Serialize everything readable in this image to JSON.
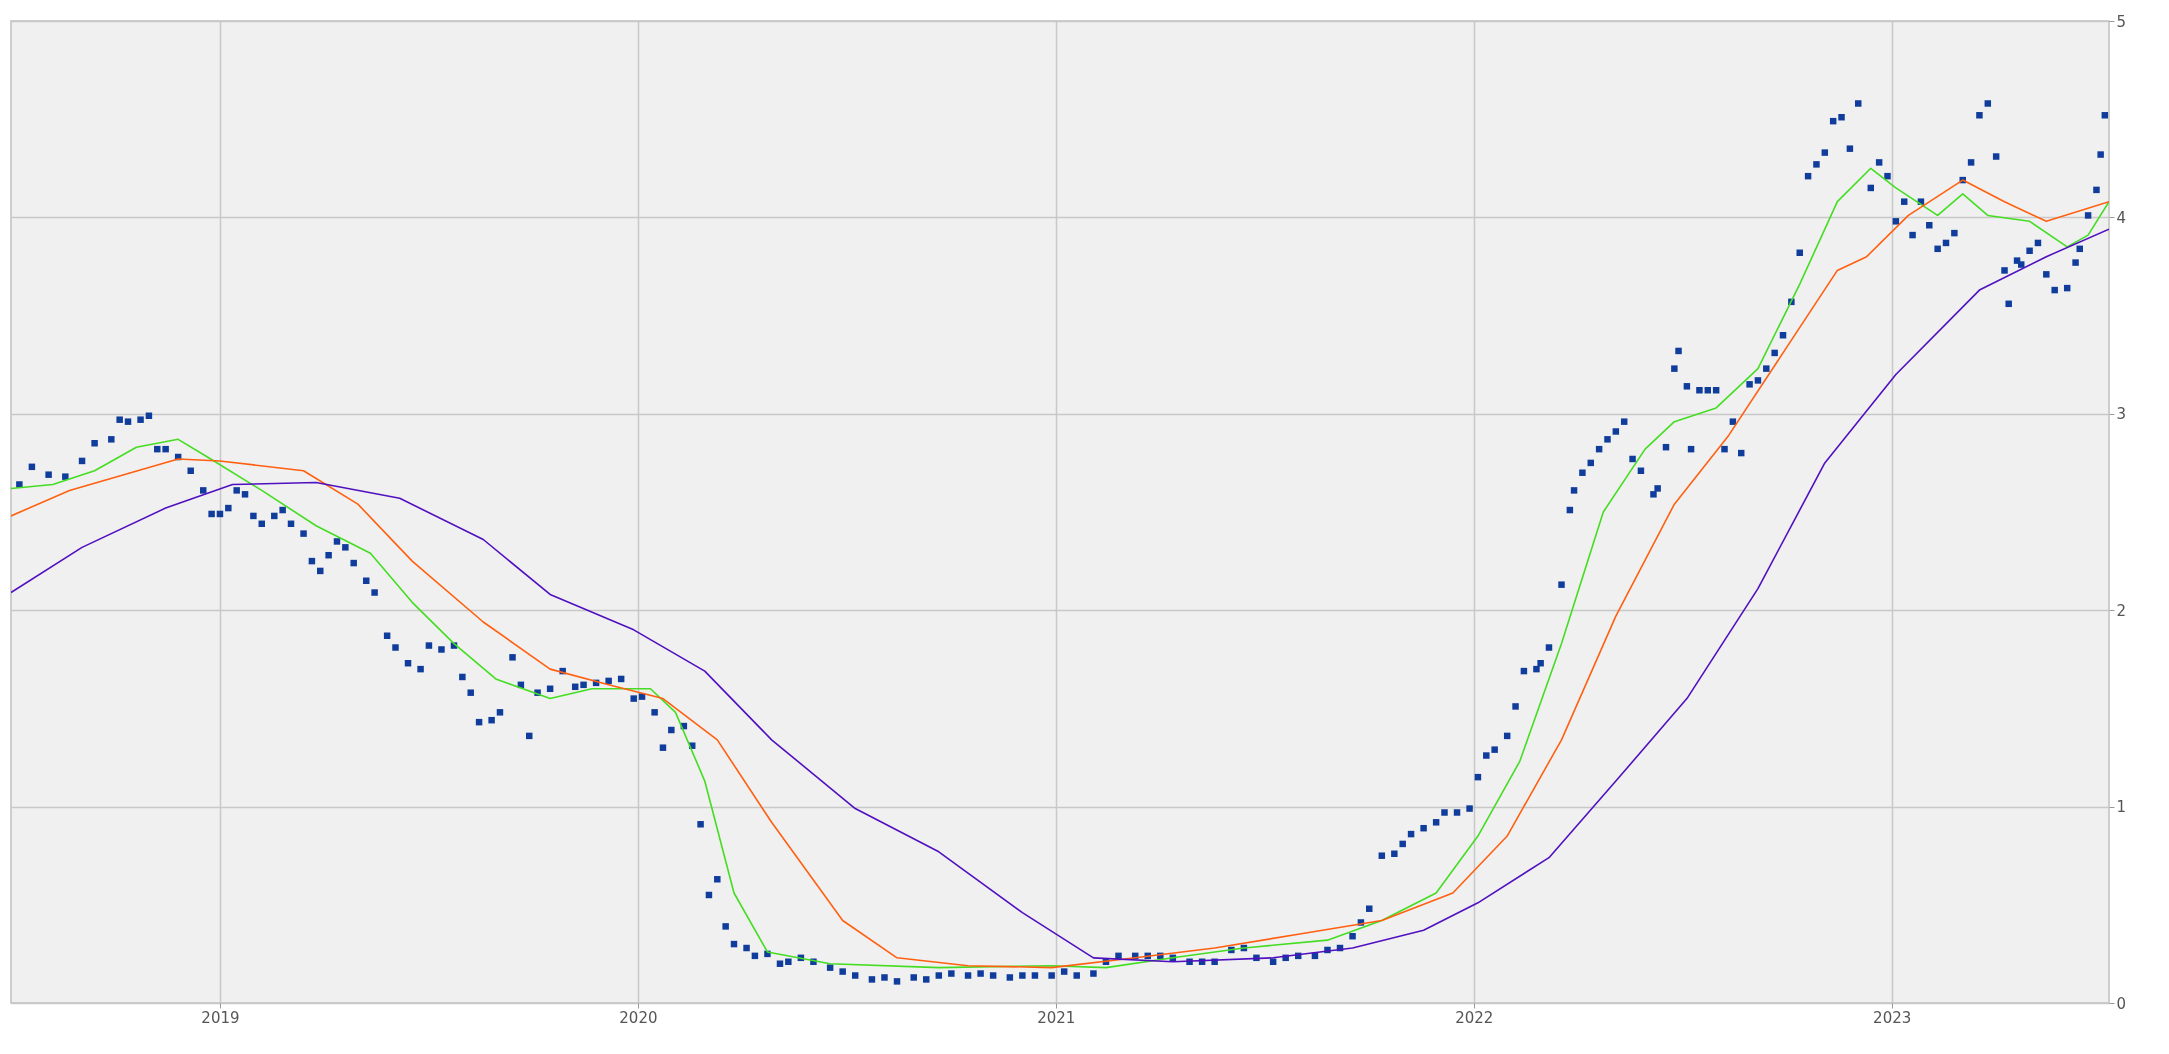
{
  "chart_data": {
    "type": "scatter",
    "xlim": [
      2018.5,
      2023.52
    ],
    "xticks": [
      2019,
      2020,
      2021,
      2022,
      2023
    ],
    "ylim": [
      0,
      5
    ],
    "yticks": [
      0,
      1,
      2,
      3,
      4,
      5
    ],
    "grid": true,
    "series": [
      {
        "type": "scatter",
        "marker": "square",
        "color": "#103c9c",
        "x": [
          2018.52,
          2018.55,
          2018.59,
          2018.63,
          2018.67,
          2018.7,
          2018.74,
          2018.76,
          2018.78,
          2018.81,
          2018.83,
          2018.85,
          2018.87,
          2018.9,
          2018.93,
          2018.96,
          2018.98,
          2019.0,
          2019.02,
          2019.04,
          2019.06,
          2019.08,
          2019.1,
          2019.13,
          2019.15,
          2019.17,
          2019.2,
          2019.22,
          2019.24,
          2019.26,
          2019.28,
          2019.3,
          2019.32,
          2019.35,
          2019.37,
          2019.4,
          2019.42,
          2019.45,
          2019.48,
          2019.5,
          2019.53,
          2019.56,
          2019.58,
          2019.6,
          2019.62,
          2019.65,
          2019.67,
          2019.7,
          2019.72,
          2019.74,
          2019.76,
          2019.79,
          2019.82,
          2019.85,
          2019.87,
          2019.9,
          2019.93,
          2019.96,
          2019.99,
          2020.01,
          2020.04,
          2020.06,
          2020.08,
          2020.11,
          2020.13,
          2020.15,
          2020.17,
          2020.19,
          2020.21,
          2020.23,
          2020.26,
          2020.28,
          2020.31,
          2020.34,
          2020.36,
          2020.39,
          2020.42,
          2020.46,
          2020.49,
          2020.52,
          2020.56,
          2020.59,
          2020.62,
          2020.66,
          2020.69,
          2020.72,
          2020.75,
          2020.79,
          2020.82,
          2020.85,
          2020.89,
          2020.92,
          2020.95,
          2020.99,
          2021.02,
          2021.05,
          2021.09,
          2021.12,
          2021.15,
          2021.19,
          2021.22,
          2021.25,
          2021.28,
          2021.32,
          2021.35,
          2021.38,
          2021.42,
          2021.45,
          2021.48,
          2021.52,
          2021.55,
          2021.58,
          2021.62,
          2021.65,
          2021.68,
          2021.71,
          2021.73,
          2021.75,
          2021.78,
          2021.81,
          2021.83,
          2021.85,
          2021.88,
          2021.91,
          2021.93,
          2021.96,
          2021.99,
          2022.01,
          2022.03,
          2022.05,
          2022.08,
          2022.1,
          2022.12,
          2022.15,
          2022.16,
          2022.18,
          2022.21,
          2022.23,
          2022.24,
          2022.26,
          2022.28,
          2022.3,
          2022.32,
          2022.34,
          2022.36,
          2022.38,
          2022.4,
          2022.43,
          2022.44,
          2022.46,
          2022.48,
          2022.49,
          2022.51,
          2022.52,
          2022.54,
          2022.56,
          2022.58,
          2022.6,
          2022.62,
          2022.64,
          2022.66,
          2022.68,
          2022.7,
          2022.72,
          2022.74,
          2022.76,
          2022.78,
          2022.8,
          2022.82,
          2022.84,
          2022.86,
          2022.88,
          2022.9,
          2022.92,
          2022.95,
          2022.97,
          2022.99,
          2023.01,
          2023.03,
          2023.05,
          2023.07,
          2023.09,
          2023.11,
          2023.13,
          2023.15,
          2023.17,
          2023.19,
          2023.21,
          2023.23,
          2023.25,
          2023.27,
          2023.28,
          2023.3,
          2023.31,
          2023.33,
          2023.35,
          2023.37,
          2023.39,
          2023.42,
          2023.44,
          2023.45,
          2023.47,
          2023.49,
          2023.5,
          2023.51
        ],
        "values": [
          2.64,
          2.73,
          2.69,
          2.68,
          2.76,
          2.85,
          2.87,
          2.97,
          2.96,
          2.97,
          2.99,
          2.82,
          2.82,
          2.78,
          2.71,
          2.61,
          2.49,
          2.49,
          2.52,
          2.61,
          2.59,
          2.48,
          2.44,
          2.48,
          2.51,
          2.44,
          2.39,
          2.25,
          2.2,
          2.28,
          2.35,
          2.32,
          2.24,
          2.15,
          2.09,
          1.87,
          1.81,
          1.73,
          1.7,
          1.82,
          1.8,
          1.82,
          1.66,
          1.58,
          1.43,
          1.44,
          1.48,
          1.76,
          1.62,
          1.36,
          1.58,
          1.6,
          1.69,
          1.61,
          1.62,
          1.63,
          1.64,
          1.65,
          1.55,
          1.56,
          1.48,
          1.3,
          1.39,
          1.41,
          1.31,
          0.91,
          0.55,
          0.63,
          0.39,
          0.3,
          0.28,
          0.24,
          0.25,
          0.2,
          0.21,
          0.23,
          0.21,
          0.18,
          0.16,
          0.14,
          0.12,
          0.13,
          0.11,
          0.13,
          0.12,
          0.14,
          0.15,
          0.14,
          0.15,
          0.14,
          0.13,
          0.14,
          0.14,
          0.14,
          0.16,
          0.14,
          0.15,
          0.21,
          0.24,
          0.24,
          0.24,
          0.24,
          0.23,
          0.21,
          0.21,
          0.21,
          0.27,
          0.28,
          0.23,
          0.21,
          0.23,
          0.24,
          0.24,
          0.27,
          0.28,
          0.34,
          0.41,
          0.48,
          0.75,
          0.76,
          0.81,
          0.86,
          0.89,
          0.92,
          0.97,
          0.97,
          0.99,
          1.15,
          1.26,
          1.29,
          1.36,
          1.51,
          1.69,
          1.7,
          1.73,
          1.81,
          2.13,
          2.51,
          2.61,
          2.7,
          2.75,
          2.82,
          2.87,
          2.91,
          2.96,
          2.77,
          2.71,
          2.59,
          2.62,
          2.83,
          3.23,
          3.32,
          3.14,
          2.82,
          3.12,
          3.12,
          3.12,
          2.82,
          2.96,
          2.8,
          3.15,
          3.17,
          3.23,
          3.31,
          3.4,
          3.57,
          3.82,
          4.21,
          4.27,
          4.33,
          4.49,
          4.51,
          4.35,
          4.58,
          4.15,
          4.28,
          4.21,
          3.98,
          4.08,
          3.91,
          4.08,
          3.96,
          3.84,
          3.87,
          3.92,
          4.19,
          4.28,
          4.52,
          4.58,
          4.31,
          3.73,
          3.56,
          3.78,
          3.76,
          3.83,
          3.87,
          3.71,
          3.63,
          3.64,
          3.77,
          3.84,
          4.01,
          4.14,
          4.32,
          4.52
        ]
      },
      {
        "type": "line",
        "color": "#44dd22",
        "x": [
          2018.5,
          2018.6,
          2018.7,
          2018.8,
          2018.9,
          2018.97,
          2019.1,
          2019.23,
          2019.36,
          2019.46,
          2019.56,
          2019.66,
          2019.79,
          2019.89,
          2020.03,
          2020.09,
          2020.16,
          2020.23,
          2020.31,
          2020.46,
          2020.72,
          2020.99,
          2021.12,
          2021.28,
          2021.45,
          2021.65,
          2021.78,
          2021.91,
          2022.01,
          2022.11,
          2022.21,
          2022.31,
          2022.41,
          2022.48,
          2022.58,
          2022.68,
          2022.78,
          2022.87,
          2022.95,
          2023.01,
          2023.11,
          2023.17,
          2023.23,
          2023.33,
          2023.42,
          2023.47,
          2023.52
        ],
        "values": [
          2.62,
          2.64,
          2.71,
          2.83,
          2.87,
          2.78,
          2.61,
          2.43,
          2.29,
          2.04,
          1.83,
          1.65,
          1.55,
          1.6,
          1.6,
          1.48,
          1.13,
          0.56,
          0.26,
          0.2,
          0.18,
          0.19,
          0.18,
          0.23,
          0.28,
          0.32,
          0.42,
          0.56,
          0.85,
          1.23,
          1.83,
          2.5,
          2.82,
          2.96,
          3.03,
          3.23,
          3.66,
          4.08,
          4.25,
          4.15,
          4.01,
          4.12,
          4.01,
          3.98,
          3.85,
          3.91,
          4.08
        ]
      },
      {
        "type": "line",
        "color": "#ff6010",
        "x": [
          2018.5,
          2018.64,
          2018.77,
          2018.9,
          2019.0,
          2019.2,
          2019.33,
          2019.46,
          2019.63,
          2019.79,
          2019.93,
          2020.06,
          2020.19,
          2020.32,
          2020.49,
          2020.62,
          2020.79,
          2020.99,
          2021.19,
          2021.38,
          2021.58,
          2021.78,
          2021.95,
          2022.08,
          2022.21,
          2022.34,
          2022.48,
          2022.61,
          2022.74,
          2022.87,
          2022.94,
          2023.04,
          2023.17,
          2023.27,
          2023.37,
          2023.52
        ],
        "values": [
          2.48,
          2.61,
          2.69,
          2.77,
          2.76,
          2.71,
          2.54,
          2.25,
          1.94,
          1.7,
          1.62,
          1.55,
          1.34,
          0.92,
          0.42,
          0.23,
          0.19,
          0.18,
          0.23,
          0.28,
          0.35,
          0.42,
          0.56,
          0.85,
          1.34,
          1.97,
          2.54,
          2.89,
          3.31,
          3.73,
          3.8,
          4.01,
          4.19,
          4.08,
          3.98,
          4.08
        ]
      },
      {
        "type": "line",
        "color": "#5010c0",
        "x": [
          2018.5,
          2018.67,
          2018.87,
          2019.03,
          2019.23,
          2019.43,
          2019.63,
          2019.79,
          2019.99,
          2020.16,
          2020.32,
          2020.52,
          2020.72,
          2020.92,
          2021.09,
          2021.28,
          2021.52,
          2021.71,
          2021.88,
          2022.01,
          2022.18,
          2022.34,
          2022.51,
          2022.68,
          2022.84,
          2023.01,
          2023.21,
          2023.37,
          2023.52
        ],
        "values": [
          2.09,
          2.32,
          2.52,
          2.64,
          2.65,
          2.57,
          2.36,
          2.08,
          1.9,
          1.69,
          1.34,
          0.99,
          0.77,
          0.46,
          0.23,
          0.21,
          0.23,
          0.28,
          0.37,
          0.51,
          0.74,
          1.13,
          1.55,
          2.11,
          2.75,
          3.2,
          3.63,
          3.8,
          3.94
        ]
      }
    ]
  }
}
